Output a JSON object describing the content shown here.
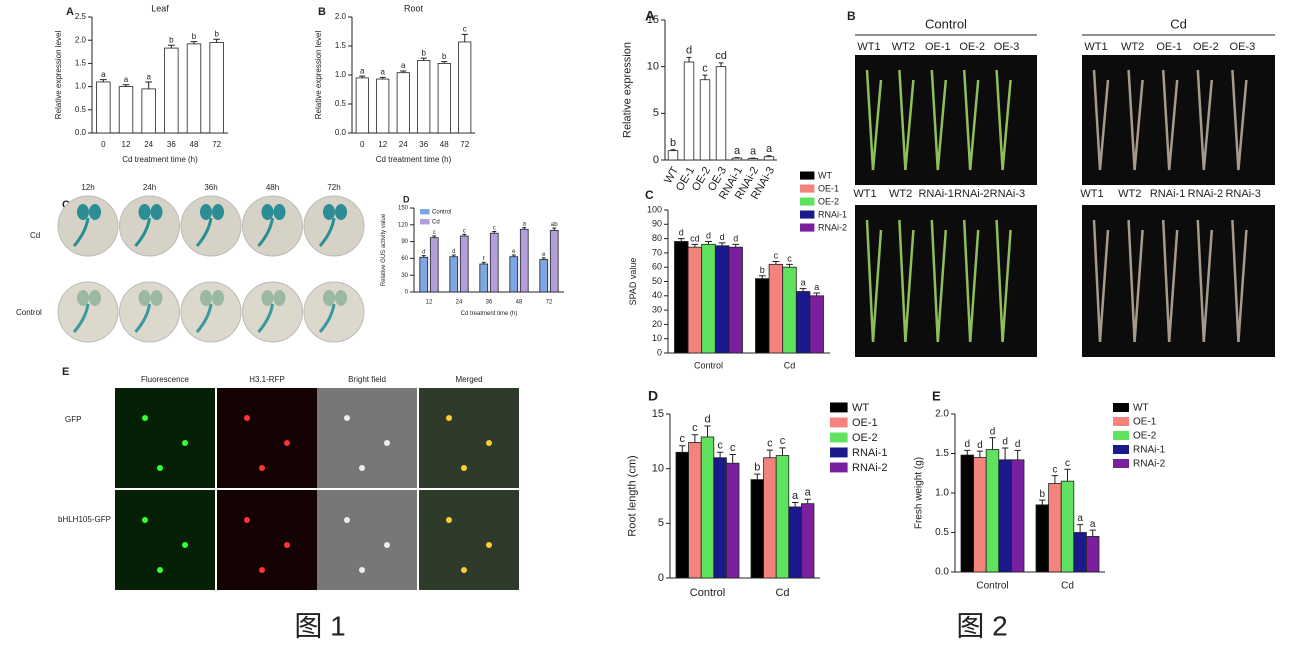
{
  "chart_data": [
    {
      "type": "bar",
      "panel": "A",
      "title": "Leaf",
      "ylabel": "Relative expression level",
      "xlabel": "Cd treatment time (h)",
      "categories": [
        "0",
        "12",
        "24",
        "36",
        "48",
        "72"
      ],
      "values": [
        1.1,
        1.0,
        0.95,
        1.83,
        1.92,
        1.95
      ],
      "errors": [
        0.05,
        0.04,
        0.15,
        0.06,
        0.05,
        0.07
      ],
      "letters": [
        "a",
        "a",
        "a",
        "b",
        "b",
        "b"
      ],
      "color": "#ffffff",
      "ylim": [
        0,
        2.5
      ],
      "yticks": [
        {
          "value": 0,
          "label": "0.0"
        },
        0.5,
        {
          "value": 1,
          "label": "1.0"
        },
        1.5,
        {
          "value": 2,
          "label": "2.0"
        },
        2.5
      ]
    },
    {
      "type": "bar",
      "panel": "B",
      "title": "Root",
      "ylabel": "Relative expression level",
      "xlabel": "Cd treatment time (h)",
      "categories": [
        "0",
        "12",
        "24",
        "36",
        "48",
        "72"
      ],
      "values": [
        0.95,
        0.93,
        1.04,
        1.25,
        1.2,
        1.57
      ],
      "errors": [
        0.03,
        0.03,
        0.03,
        0.04,
        0.03,
        0.13
      ],
      "letters": [
        "a",
        "a",
        "a",
        "b",
        "b",
        "c"
      ],
      "color": "#ffffff",
      "ylim": [
        0,
        2
      ],
      "yticks": [
        {
          "value": 0,
          "label": "0.0"
        },
        0.5,
        {
          "value": 1,
          "label": "1.0"
        },
        1.5,
        {
          "value": 2,
          "label": "2.0"
        }
      ]
    },
    {
      "type": "grouped-bar",
      "panel": "D",
      "ylabel": "Relative GUS activity value",
      "xlabel": "Cd treatment time (h)",
      "categories": [
        "12",
        "24",
        "36",
        "48",
        "72"
      ],
      "legend": "upper-left",
      "series": [
        {
          "name": "Control",
          "color": "#7ea6e0",
          "values": [
            62,
            63,
            50,
            63,
            58
          ],
          "errors": [
            3,
            3,
            3,
            3,
            3
          ],
          "letters": [
            "d",
            "d",
            "f",
            "e",
            "e"
          ]
        },
        {
          "name": "Cd",
          "color": "#b39ddb",
          "values": [
            97,
            100,
            105,
            112,
            110
          ],
          "errors": [
            3,
            3,
            3,
            3,
            4
          ],
          "letters": [
            "c",
            "c",
            "c",
            "a",
            "ab"
          ]
        }
      ],
      "ylim": [
        0,
        150
      ],
      "yticks": [
        0,
        30,
        60,
        90,
        120,
        150
      ]
    },
    {
      "type": "bar",
      "panel": "A",
      "ylabel": "Relative expression",
      "rotate_xticks": true,
      "categories": [
        "WT",
        "OE-1",
        "OE-2",
        "OE-3",
        "RNAi-1",
        "RNAi-2",
        "RNAi-3"
      ],
      "values": [
        1,
        10.5,
        8.6,
        10,
        0.2,
        0.15,
        0.35
      ],
      "errors": [
        0.1,
        0.5,
        0.5,
        0.4,
        0.05,
        0.05,
        0.1
      ],
      "letters": [
        "b",
        "d",
        "c",
        "cd",
        "a",
        "a",
        "a"
      ],
      "color": "#ffffff",
      "ylim": [
        0,
        15
      ],
      "yticks": [
        0,
        5,
        10,
        15
      ]
    },
    {
      "type": "grouped-bar",
      "panel": "C",
      "ylabel": "SPAD value",
      "categories": [
        "Control",
        "Cd"
      ],
      "legend": "outside-right",
      "series": [
        {
          "name": "WT",
          "color": "#000000",
          "values": [
            78,
            52
          ],
          "errors": [
            2,
            2
          ],
          "letters": [
            "d",
            "b"
          ]
        },
        {
          "name": "OE-1",
          "color": "#f4837d",
          "values": [
            74,
            62
          ],
          "errors": [
            2,
            2
          ],
          "letters": [
            "cd",
            "c"
          ]
        },
        {
          "name": "OE-2",
          "color": "#5fe35f",
          "values": [
            76,
            60
          ],
          "errors": [
            2,
            2
          ],
          "letters": [
            "d",
            "c"
          ]
        },
        {
          "name": "RNAi-1",
          "color": "#1a1a8c",
          "values": [
            75,
            43
          ],
          "errors": [
            2,
            2
          ],
          "letters": [
            "d",
            "a"
          ]
        },
        {
          "name": "RNAi-2",
          "color": "#7a1f9e",
          "values": [
            74,
            40
          ],
          "errors": [
            2,
            2
          ],
          "letters": [
            "d",
            "a"
          ]
        }
      ],
      "ylim": [
        0,
        100
      ],
      "yticks": [
        0,
        10,
        20,
        30,
        40,
        50,
        60,
        70,
        80,
        90,
        100
      ]
    },
    {
      "type": "grouped-bar",
      "panel": "D",
      "ylabel": "Root length (cm)",
      "categories": [
        "Control",
        "Cd"
      ],
      "legend": "outside-right",
      "series": [
        {
          "name": "WT",
          "color": "#000000",
          "values": [
            11.5,
            9
          ],
          "errors": [
            0.6,
            0.5
          ],
          "letters": [
            "c",
            "b"
          ]
        },
        {
          "name": "OE-1",
          "color": "#f4837d",
          "values": [
            12.4,
            11
          ],
          "errors": [
            0.7,
            0.7
          ],
          "letters": [
            "c",
            "c"
          ]
        },
        {
          "name": "OE-2",
          "color": "#5fe35f",
          "values": [
            12.9,
            11.2
          ],
          "errors": [
            1,
            0.7
          ],
          "letters": [
            "d",
            "c"
          ]
        },
        {
          "name": "RNAi-1",
          "color": "#1a1a8c",
          "values": [
            11,
            6.5
          ],
          "errors": [
            0.5,
            0.4
          ],
          "letters": [
            "c",
            "a"
          ]
        },
        {
          "name": "RNAi-2",
          "color": "#7a1f9e",
          "values": [
            10.5,
            6.8
          ],
          "errors": [
            0.8,
            0.4
          ],
          "letters": [
            "c",
            "a"
          ]
        }
      ],
      "ylim": [
        0,
        15
      ],
      "yticks": [
        0,
        5,
        10,
        15
      ]
    },
    {
      "type": "grouped-bar",
      "panel": "E",
      "ylabel": "Fresh weight (g)",
      "categories": [
        "Control",
        "Cd"
      ],
      "legend": "outside-right",
      "series": [
        {
          "name": "WT",
          "color": "#000000",
          "values": [
            1.48,
            0.85
          ],
          "errors": [
            0.06,
            0.06
          ],
          "letters": [
            "d",
            "b"
          ]
        },
        {
          "name": "OE-1",
          "color": "#f4837d",
          "values": [
            1.45,
            1.12
          ],
          "errors": [
            0.08,
            0.1
          ],
          "letters": [
            "d",
            "c"
          ]
        },
        {
          "name": "OE-2",
          "color": "#5fe35f",
          "values": [
            1.55,
            1.15
          ],
          "errors": [
            0.15,
            0.15
          ],
          "letters": [
            "d",
            "c"
          ]
        },
        {
          "name": "RNAi-1",
          "color": "#1a1a8c",
          "values": [
            1.42,
            0.5
          ],
          "errors": [
            0.15,
            0.1
          ],
          "letters": [
            "d",
            "a"
          ]
        },
        {
          "name": "RNAi-2",
          "color": "#7a1f9e",
          "values": [
            1.42,
            0.45
          ],
          "errors": [
            0.12,
            0.08
          ],
          "letters": [
            "d",
            "a"
          ]
        }
      ],
      "ylim": [
        0,
        2
      ],
      "yticks": [
        {
          "value": 0,
          "label": "0.0"
        },
        0.5,
        {
          "value": 1,
          "label": "1.0"
        },
        1.5,
        {
          "value": 2,
          "label": "2.0"
        }
      ]
    }
  ],
  "figure1": {
    "caption": "图 1",
    "panel_c": {
      "letter": "C",
      "times": [
        "12h",
        "24h",
        "36h",
        "48h",
        "72h"
      ],
      "rows": [
        "Cd",
        "Control"
      ]
    },
    "panel_e": {
      "letter": "E",
      "columns": [
        "Fluorescence",
        "H3.1-RFP",
        "Bright field",
        "Merged"
      ],
      "rows": [
        "GFP",
        "bHLH105-GFP"
      ]
    }
  },
  "figure2": {
    "caption": "图 2",
    "panel_b": {
      "letter": "B",
      "groups": [
        "Control",
        "Cd"
      ],
      "top_labels": [
        "WT1",
        "WT2",
        "OE-1",
        "OE-2",
        "OE-3"
      ],
      "bottom_labels": [
        "WT1",
        "WT2",
        "RNAi-1",
        "RNAi-2",
        "RNAi-3"
      ]
    }
  }
}
